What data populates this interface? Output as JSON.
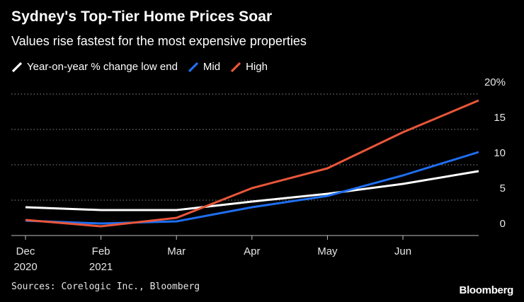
{
  "header": {
    "title": "Sydney's Top-Tier Home Prices Soar",
    "subtitle": "Values rise fastest for the most expensive properties"
  },
  "footer": {
    "source": "Sources: Corelogic Inc., Bloomberg",
    "brand": "Bloomberg"
  },
  "colors": {
    "background": "#000000",
    "low": "#ffffff",
    "mid": "#1f6ff0",
    "high": "#e8563a",
    "grid": "#8c8c8c"
  },
  "chart_data": {
    "type": "line",
    "title": "Sydney's Top-Tier Home Prices Soar",
    "subtitle": "Values rise fastest for the most expensive properties",
    "xlabel": "",
    "ylabel": "",
    "ylim": [
      0,
      20
    ],
    "y_ticks": [
      "0",
      "5",
      "10",
      "15",
      "20%"
    ],
    "y_tick_values": [
      0,
      5,
      10,
      15,
      20
    ],
    "x_ticks": [
      {
        "index": 0,
        "line1": "Dec",
        "line2": "2020"
      },
      {
        "index": 1,
        "line1": "Feb",
        "line2": "2021"
      },
      {
        "index": 2,
        "line1": "Mar",
        "line2": ""
      },
      {
        "index": 3,
        "line1": "Apr",
        "line2": ""
      },
      {
        "index": 4,
        "line1": "May",
        "line2": ""
      },
      {
        "index": 5,
        "line1": "Jun",
        "line2": ""
      }
    ],
    "x": [
      0,
      1,
      2,
      3,
      4,
      5,
      6
    ],
    "grid": true,
    "legend_position": "top-left",
    "series": [
      {
        "name": "Year-on-year % change low end",
        "color_key": "low",
        "values": [
          4.0,
          3.6,
          3.6,
          4.8,
          5.9,
          7.3,
          9.1
        ]
      },
      {
        "name": "Mid",
        "color_key": "mid",
        "values": [
          2.1,
          1.7,
          2.0,
          4.0,
          5.6,
          8.5,
          11.8
        ]
      },
      {
        "name": "High",
        "color_key": "high",
        "values": [
          2.2,
          1.3,
          2.5,
          6.7,
          9.5,
          14.6,
          19.1
        ]
      }
    ]
  }
}
